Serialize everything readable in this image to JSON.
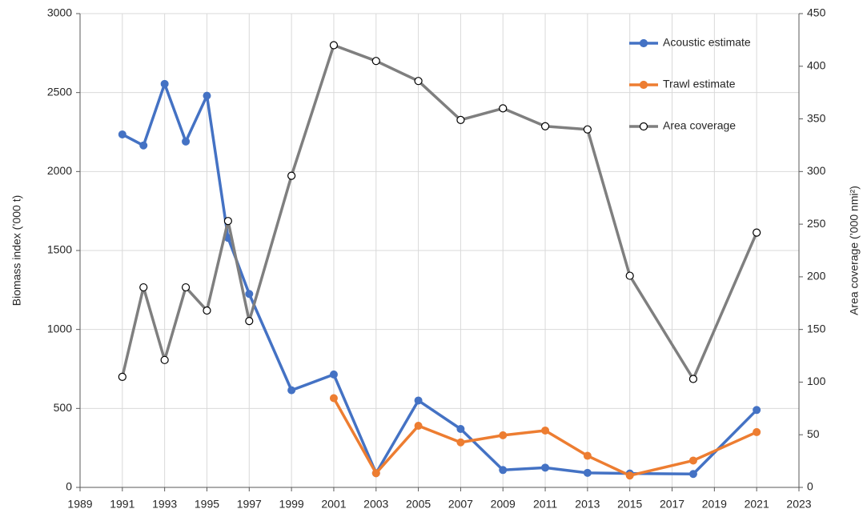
{
  "chart_data": {
    "type": "line",
    "y_label": "Biomass index (’000 t)",
    "y2_label": "Area coverage (’000 nmi²)",
    "xlim": [
      1989,
      2023
    ],
    "xticks": [
      1989,
      1991,
      1993,
      1995,
      1997,
      1999,
      2001,
      2003,
      2005,
      2007,
      2009,
      2011,
      2013,
      2015,
      2017,
      2019,
      2021,
      2023
    ],
    "ylim": [
      0,
      3000
    ],
    "yticks": [
      0,
      500,
      1000,
      1500,
      2000,
      2500,
      3000
    ],
    "y2lim": [
      0,
      450
    ],
    "y2ticks": [
      0,
      50,
      100,
      150,
      200,
      250,
      300,
      350,
      400,
      450
    ],
    "grid": true,
    "legend": "top-right",
    "series": [
      {
        "name": "Acoustic estimate",
        "color": "#4472c4",
        "marker_fill": "#4472c4",
        "x": [
          1991,
          1992,
          1993,
          1994,
          1995,
          1996,
          1997,
          1999,
          2001,
          2003,
          2005,
          2007,
          2009,
          2011,
          2013,
          2015,
          2018,
          2021
        ],
        "values": [
          2235,
          2165,
          2555,
          2190,
          2480,
          1580,
          1225,
          615,
          715,
          90,
          550,
          370,
          110,
          125,
          92,
          88,
          85,
          490
        ]
      },
      {
        "name": "Trawl estimate",
        "color": "#ed7d31",
        "marker_fill": "#ed7d31",
        "x": [
          2001,
          2003,
          2005,
          2007,
          2009,
          2011,
          2013,
          2015,
          2018,
          2021
        ],
        "values": [
          565,
          90,
          390,
          285,
          330,
          360,
          200,
          75,
          170,
          350
        ]
      },
      {
        "name": "Area coverage",
        "color": "#7f7f7f",
        "marker_fill": "#ffffff",
        "axis": "y2",
        "x": [
          1991,
          1992,
          1993,
          1994,
          1995,
          1996,
          1997,
          1999,
          2001,
          2003,
          2005,
          2007,
          2009,
          2011,
          2013,
          2015,
          2018,
          2021
        ],
        "values": [
          105,
          190,
          121,
          190,
          168,
          253,
          158,
          296,
          420,
          405,
          386,
          349,
          360,
          343,
          340,
          201,
          103,
          242
        ]
      }
    ]
  }
}
